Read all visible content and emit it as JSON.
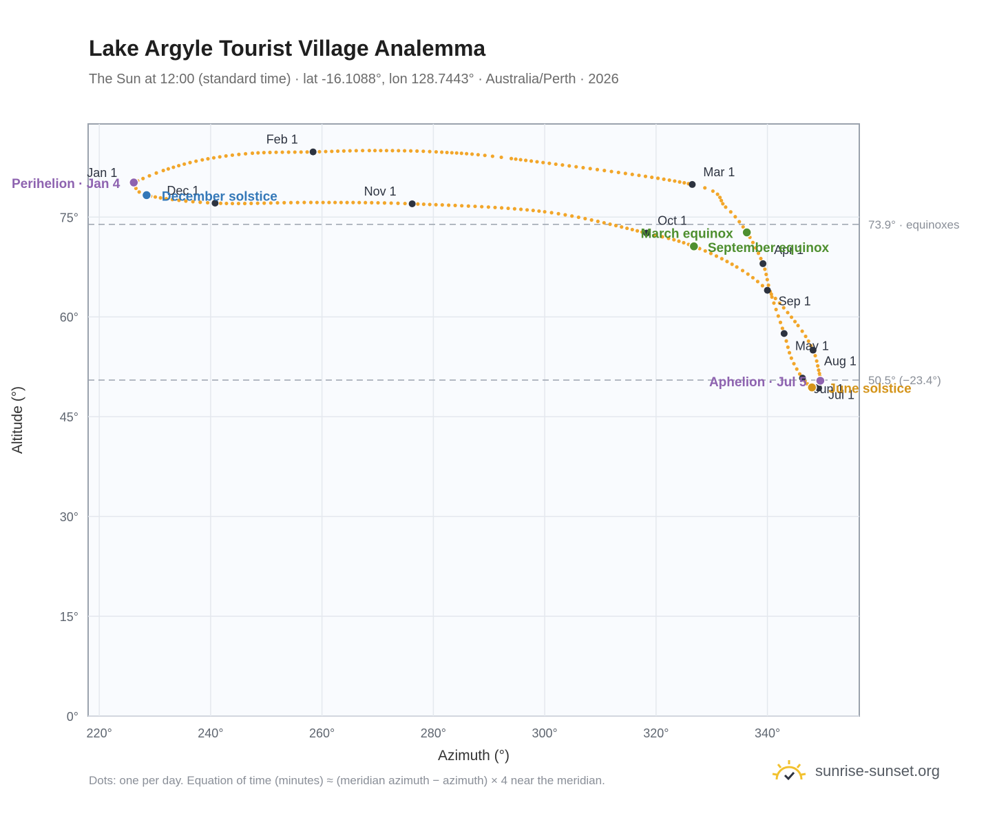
{
  "title": "Lake Argyle Tourist Village Analemma",
  "subtitle": "The Sun at 12:00 (standard time) · lat -16.1088°, lon 128.7443° · Australia/Perth · 2026",
  "footnote": "Dots: one per day. Equation of time (minutes) ≈ (meridian azimuth − azimuth) × 4 near the meridian.",
  "brand": {
    "name": "sunrise-sunset.org",
    "icon": "sun-check-icon"
  },
  "colors": {
    "curve": "#f2a62a",
    "month_marker": "#2d3340",
    "perihelion": "#8e63b0",
    "december_solstice": "#3478b8",
    "june_solstice": "#d4941a",
    "equinox": "#4e8f2f",
    "reference_line": "#9aa2ad",
    "plot_bg": "#f9fbfe",
    "grid": "#e4e8ee"
  },
  "chart_data": {
    "type": "scatter",
    "title": "Lake Argyle Tourist Village Analemma",
    "xlabel": "Azimuth (°)",
    "ylabel": "Altitude (°)",
    "xlim": [
      218,
      356.5
    ],
    "ylim": [
      0,
      89
    ],
    "xticks": [
      220,
      240,
      260,
      280,
      300,
      320,
      340
    ],
    "xtick_labels": [
      "220°",
      "240°",
      "260°",
      "280°",
      "300°",
      "320°",
      "340°"
    ],
    "yticks": [
      0,
      15,
      30,
      45,
      60,
      75
    ],
    "ytick_labels": [
      "0°",
      "15°",
      "30°",
      "45°",
      "60°",
      "75°"
    ],
    "grid": true,
    "path_anchors": [
      {
        "date": "Jan 1",
        "az": 226.2,
        "alt": 80.2
      },
      {
        "date": "Jan 5",
        "az": 231.5,
        "alt": 82.0
      },
      {
        "date": "Jan 12",
        "az": 238.5,
        "alt": 83.6
      },
      {
        "date": "Jan 20",
        "az": 247.5,
        "alt": 84.6
      },
      {
        "date": "Feb 1",
        "az": 258.4,
        "alt": 84.8
      },
      {
        "date": "Feb 10",
        "az": 268.5,
        "alt": 85.0
      },
      {
        "date": "Feb 18",
        "az": 280.5,
        "alt": 84.8
      },
      {
        "date": "Feb 24",
        "az": 294.0,
        "alt": 83.8
      },
      {
        "date": "Mar 1",
        "az": 326.5,
        "alt": 79.9
      },
      {
        "date": "Mar 10",
        "az": 332.5,
        "alt": 76.5
      },
      {
        "date": "Mar 20",
        "az": 336.3,
        "alt": 72.7
      },
      {
        "date": "Apr 1",
        "az": 339.2,
        "alt": 68.0
      },
      {
        "date": "Apr 15",
        "az": 340.5,
        "alt": 63.8
      },
      {
        "date": "May 1",
        "az": 343.0,
        "alt": 57.5
      },
      {
        "date": "May 15",
        "az": 344.3,
        "alt": 53.8
      },
      {
        "date": "Jun 1",
        "az": 346.3,
        "alt": 50.8
      },
      {
        "date": "Jun 21",
        "az": 348.0,
        "alt": 49.4
      },
      {
        "date": "Jul 1",
        "az": 349.2,
        "alt": 49.3
      },
      {
        "date": "Jul 10",
        "az": 349.5,
        "alt": 50.4
      },
      {
        "date": "Jul 20",
        "az": 349.2,
        "alt": 52.0
      },
      {
        "date": "Aug 1",
        "az": 348.2,
        "alt": 55.0
      },
      {
        "date": "Aug 15",
        "az": 345.5,
        "alt": 58.7
      },
      {
        "date": "Sep 1",
        "az": 340.0,
        "alt": 64.0
      },
      {
        "date": "Sep 12",
        "az": 334.5,
        "alt": 67.5
      },
      {
        "date": "Sep 22",
        "az": 326.8,
        "alt": 70.6
      },
      {
        "date": "Oct 1",
        "az": 318.3,
        "alt": 72.6
      },
      {
        "date": "Oct 15",
        "az": 300.0,
        "alt": 75.8
      },
      {
        "date": "Nov 1",
        "az": 276.2,
        "alt": 77.0
      },
      {
        "date": "Nov 15",
        "az": 258.0,
        "alt": 77.2
      },
      {
        "date": "Dec 1",
        "az": 240.8,
        "alt": 77.1
      },
      {
        "date": "Dec 21",
        "az": 228.5,
        "alt": 78.3
      },
      {
        "date": "Jan 1",
        "az": 226.2,
        "alt": 80.2
      }
    ],
    "month_markers": [
      {
        "label": "Jan 1",
        "az": 226.2,
        "alt": 80.2,
        "dx": -68,
        "dy": -8
      },
      {
        "label": "Feb 1",
        "az": 258.4,
        "alt": 84.8,
        "dx": -68,
        "dy": -12
      },
      {
        "label": "Mar 1",
        "az": 326.5,
        "alt": 79.9,
        "dx": 16,
        "dy": -12
      },
      {
        "label": "Apr 1",
        "az": 339.2,
        "alt": 68.0,
        "dx": 16,
        "dy": -14
      },
      {
        "label": "May 1",
        "az": 343.0,
        "alt": 57.5,
        "dx": 16,
        "dy": 24
      },
      {
        "label": "Jun 1",
        "az": 346.3,
        "alt": 50.8,
        "dx": 16,
        "dy": 22
      },
      {
        "label": "Jul 1",
        "az": 349.2,
        "alt": 49.3,
        "dx": 14,
        "dy": 16
      },
      {
        "label": "Aug 1",
        "az": 348.2,
        "alt": 55.0,
        "dx": 16,
        "dy": 22
      },
      {
        "label": "Sep 1",
        "az": 340.0,
        "alt": 64.0,
        "dx": 16,
        "dy": 22
      },
      {
        "label": "Oct 1",
        "az": 318.3,
        "alt": 72.6,
        "dx": 16,
        "dy": -12
      },
      {
        "label": "Nov 1",
        "az": 276.2,
        "alt": 77.0,
        "dx": -70,
        "dy": -12
      },
      {
        "label": "Dec 1",
        "az": 240.8,
        "alt": 77.1,
        "dx": -70,
        "dy": -12
      }
    ],
    "events": [
      {
        "label": "Perihelion · Jan 4",
        "az": 226.2,
        "alt": 80.2,
        "color": "#8e63b0",
        "anchor": "end",
        "dx": -20,
        "dy": 8
      },
      {
        "label": "December solstice",
        "az": 228.5,
        "alt": 78.3,
        "color": "#3478b8",
        "anchor": "start",
        "dx": 22,
        "dy": 8
      },
      {
        "label": "March equinox",
        "az": 336.3,
        "alt": 72.7,
        "color": "#4e8f2f",
        "anchor": "end",
        "dx": -20,
        "dy": 8
      },
      {
        "label": "September equinox",
        "az": 326.8,
        "alt": 70.6,
        "color": "#4e8f2f",
        "anchor": "start",
        "dx": 20,
        "dy": 8
      },
      {
        "label": "Aphelion · Jul 5",
        "az": 349.5,
        "alt": 50.4,
        "color": "#8e63b0",
        "anchor": "end",
        "dx": -20,
        "dy": 8
      },
      {
        "label": "June solstice",
        "az": 348.0,
        "alt": 49.4,
        "color": "#d4941a",
        "anchor": "start",
        "dx": 24,
        "dy": 8
      }
    ],
    "reference_lines": [
      {
        "alt": 73.9,
        "label": "73.9° · equinoxes"
      },
      {
        "alt": 50.5,
        "label": "50.5° (−23.4°)"
      }
    ]
  }
}
